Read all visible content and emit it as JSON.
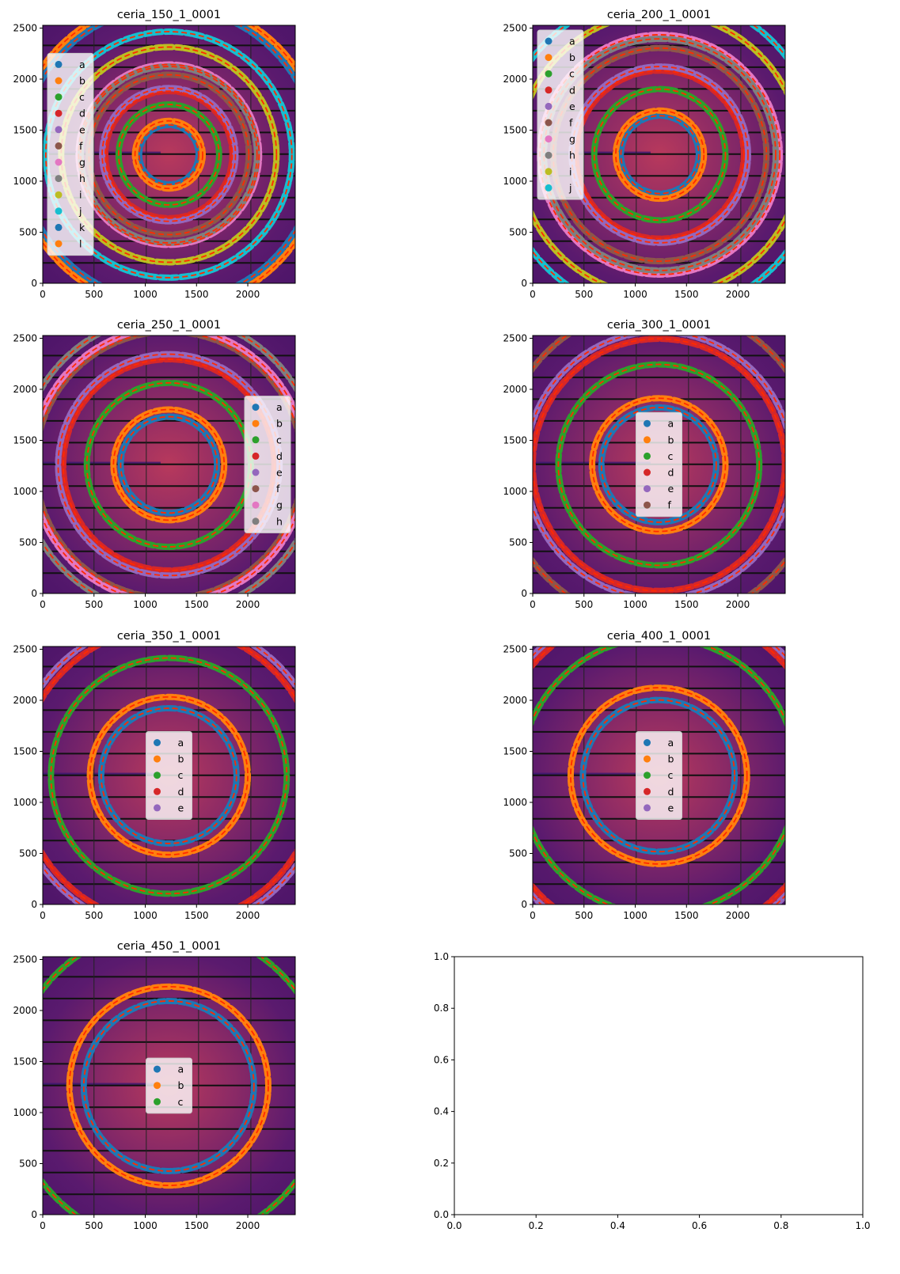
{
  "chart_data": [
    {
      "type": "image",
      "title": "ceria_150_1_0001",
      "xlim": [
        0,
        2463
      ],
      "ylim": [
        0,
        2527
      ],
      "center": [
        1230,
        1260
      ],
      "legend": "center-left",
      "xticks": [
        0,
        500,
        1000,
        1500,
        2000
      ],
      "yticks": [
        0,
        500,
        1000,
        1500,
        2000,
        2500
      ],
      "rings": [
        {
          "label": "a",
          "radius": 290
        },
        {
          "label": "b",
          "radius": 330
        },
        {
          "label": "c",
          "radius": 490
        },
        {
          "label": "d",
          "radius": 620
        },
        {
          "label": "e",
          "radius": 650
        },
        {
          "label": "f",
          "radius": 780
        },
        {
          "label": "g",
          "radius": 880
        },
        {
          "label": "h",
          "radius": 860
        },
        {
          "label": "i",
          "radius": 1050
        },
        {
          "label": "j",
          "radius": 1200
        },
        {
          "label": "k",
          "radius": 1440
        },
        {
          "label": "l",
          "radius": 1500
        }
      ]
    },
    {
      "type": "image",
      "title": "ceria_200_1_0001",
      "xlim": [
        0,
        2463
      ],
      "ylim": [
        0,
        2527
      ],
      "center": [
        1240,
        1260
      ],
      "legend": "upper-left",
      "xticks": [
        0,
        500,
        1000,
        1500,
        2000
      ],
      "yticks": [
        0,
        500,
        1000,
        1500,
        2000,
        2500
      ],
      "rings": [
        {
          "label": "a",
          "radius": 380
        },
        {
          "label": "b",
          "radius": 430
        },
        {
          "label": "c",
          "radius": 640
        },
        {
          "label": "d",
          "radius": 820
        },
        {
          "label": "e",
          "radius": 860
        },
        {
          "label": "f",
          "radius": 1040
        },
        {
          "label": "g",
          "radius": 1170
        },
        {
          "label": "h",
          "radius": 1130
        },
        {
          "label": "i",
          "radius": 1380
        },
        {
          "label": "j",
          "radius": 1560
        }
      ]
    },
    {
      "type": "image",
      "title": "ceria_250_1_0001",
      "xlim": [
        0,
        2463
      ],
      "ylim": [
        0,
        2527
      ],
      "center": [
        1230,
        1260
      ],
      "legend": "center-right",
      "xticks": [
        0,
        500,
        1000,
        1500,
        2000
      ],
      "yticks": [
        0,
        500,
        1000,
        1500,
        2000,
        2500
      ],
      "rings": [
        {
          "label": "a",
          "radius": 470
        },
        {
          "label": "b",
          "radius": 540
        },
        {
          "label": "c",
          "radius": 800
        },
        {
          "label": "d",
          "radius": 1030
        },
        {
          "label": "e",
          "radius": 1080
        },
        {
          "label": "f",
          "radius": 1300
        },
        {
          "label": "g",
          "radius": 1340
        },
        {
          "label": "h",
          "radius": 1450
        }
      ]
    },
    {
      "type": "image",
      "title": "ceria_300_1_0001",
      "xlim": [
        0,
        2463
      ],
      "ylim": [
        0,
        2527
      ],
      "center": [
        1230,
        1260
      ],
      "legend": "center",
      "xticks": [
        0,
        500,
        1000,
        1500,
        2000
      ],
      "yticks": [
        0,
        500,
        1000,
        1500,
        2000,
        2500
      ],
      "rings": [
        {
          "label": "a",
          "radius": 560
        },
        {
          "label": "b",
          "radius": 650
        },
        {
          "label": "c",
          "radius": 980
        },
        {
          "label": "d",
          "radius": 1230
        },
        {
          "label": "e",
          "radius": 1300
        },
        {
          "label": "f",
          "radius": 1550
        }
      ]
    },
    {
      "type": "image",
      "title": "ceria_350_1_0001",
      "xlim": [
        0,
        2463
      ],
      "ylim": [
        0,
        2527
      ],
      "center": [
        1230,
        1260
      ],
      "legend": "center",
      "xticks": [
        0,
        500,
        1000,
        1500,
        2000
      ],
      "yticks": [
        0,
        500,
        1000,
        1500,
        2000,
        2500
      ],
      "rings": [
        {
          "label": "a",
          "radius": 660
        },
        {
          "label": "b",
          "radius": 770
        },
        {
          "label": "c",
          "radius": 1150
        },
        {
          "label": "d",
          "radius": 1450
        },
        {
          "label": "e",
          "radius": 1520
        }
      ]
    },
    {
      "type": "image",
      "title": "ceria_400_1_0001",
      "xlim": [
        0,
        2463
      ],
      "ylim": [
        0,
        2527
      ],
      "center": [
        1230,
        1260
      ],
      "legend": "center",
      "xticks": [
        0,
        500,
        1000,
        1500,
        2000
      ],
      "yticks": [
        0,
        500,
        1000,
        1500,
        2000,
        2500
      ],
      "rings": [
        {
          "label": "a",
          "radius": 740
        },
        {
          "label": "b",
          "radius": 860
        },
        {
          "label": "c",
          "radius": 1350
        },
        {
          "label": "d",
          "radius": 1640
        },
        {
          "label": "e",
          "radius": 1700
        }
      ]
    },
    {
      "type": "image",
      "title": "ceria_450_1_0001",
      "xlim": [
        0,
        2463
      ],
      "ylim": [
        0,
        2527
      ],
      "center": [
        1230,
        1260
      ],
      "legend": "center",
      "xticks": [
        0,
        500,
        1000,
        1500,
        2000
      ],
      "yticks": [
        0,
        500,
        1000,
        1500,
        2000,
        2500
      ],
      "rings": [
        {
          "label": "a",
          "radius": 830
        },
        {
          "label": "b",
          "radius": 970
        },
        {
          "label": "c",
          "radius": 1550
        }
      ]
    },
    {
      "type": "empty",
      "title": "",
      "xlim": [
        0,
        1
      ],
      "ylim": [
        0,
        1
      ],
      "xticks": [
        "0.0",
        "0.2",
        "0.4",
        "0.6",
        "0.8",
        "1.0"
      ],
      "yticks": [
        "0.0",
        "0.2",
        "0.4",
        "0.6",
        "0.8",
        "1.0"
      ],
      "rings": []
    }
  ],
  "colors": {
    "a": "#1f77b4",
    "b": "#ff7f0e",
    "c": "#2ca02c",
    "d": "#d62728",
    "e": "#9467bd",
    "f": "#8c564b",
    "g": "#e377c2",
    "h": "#7f7f7f",
    "i": "#bcbd22",
    "j": "#17becf",
    "k": "#1f77b4",
    "l": "#ff7f0e",
    "fit": "#ff2a00"
  }
}
